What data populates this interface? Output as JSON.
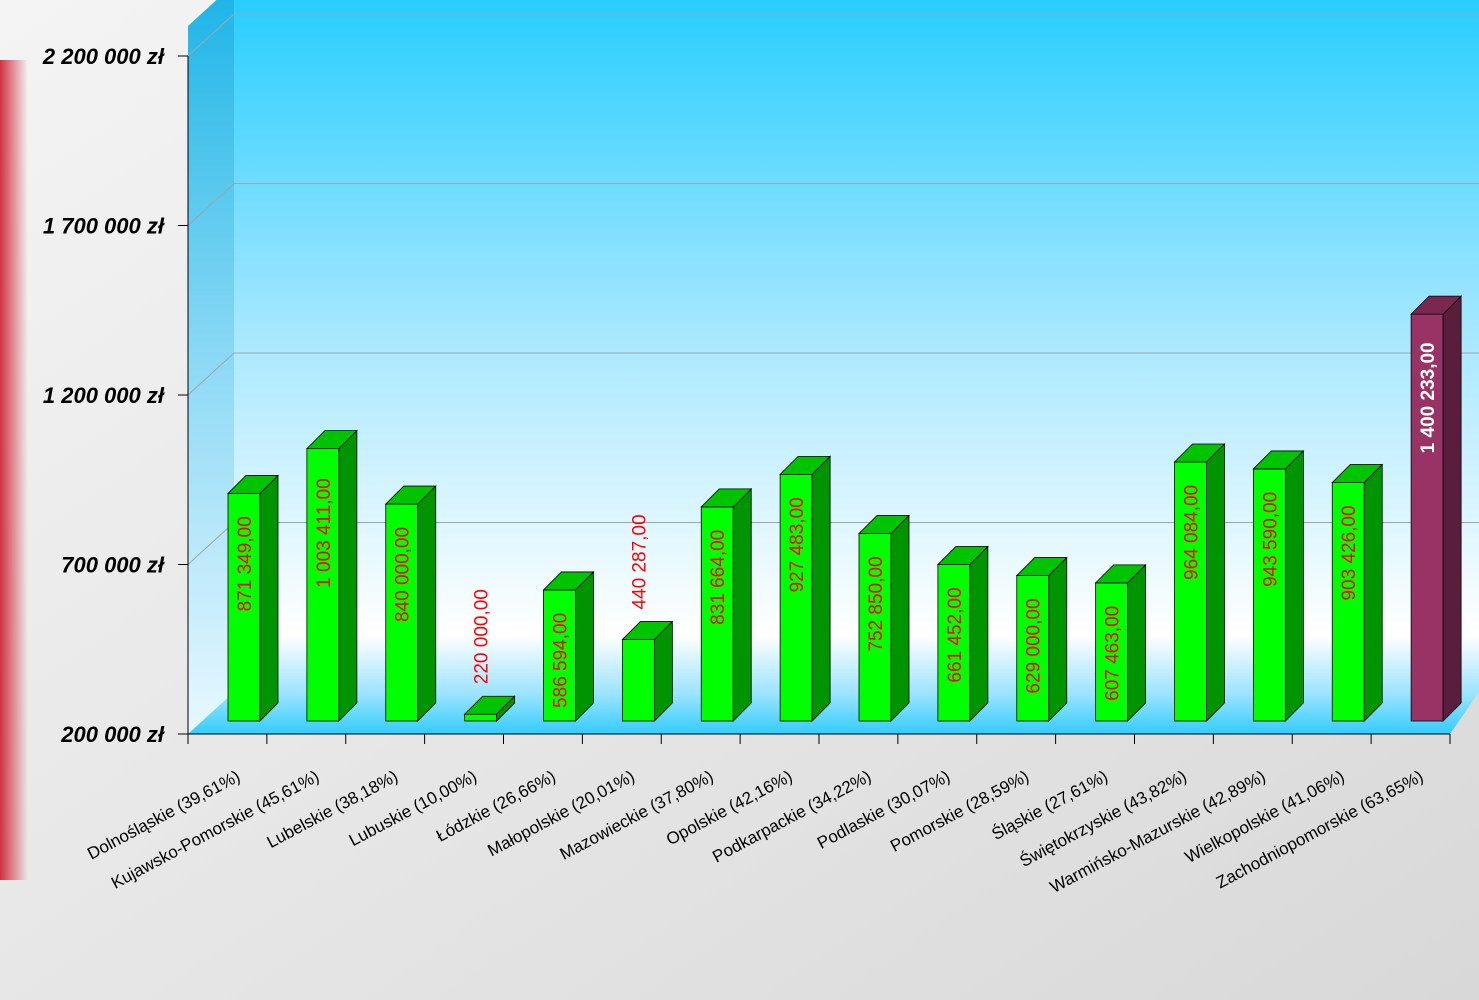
{
  "chart_data": {
    "type": "bar",
    "title": "",
    "xlabel": "",
    "ylabel": "",
    "ylim": [
      200000,
      2200000
    ],
    "yticks": [
      {
        "value": 200000,
        "label": "200 000 zł"
      },
      {
        "value": 700000,
        "label": "700 000 zł"
      },
      {
        "value": 1200000,
        "label": "1 200 000 zł"
      },
      {
        "value": 1700000,
        "label": "1 700 000 zł"
      },
      {
        "value": 2200000,
        "label": "2 200 000 zł"
      }
    ],
    "categories": [
      "Dolnośląskie (39,61%)",
      "Kujawsko-Pomorskie (45,61%)",
      "Lubelskie (38,18%)",
      "Lubuskie (10,00%)",
      "Łódzkie (26,66%)",
      "Małopolskie (20,01%)",
      "Mazowieckie (37,80%)",
      "Opolskie (42,16%)",
      "Podkarpackie (34,22%)",
      "Podlaskie (30,07%)",
      "Pomorskie (28,59%)",
      "Śląskie (27,61%)",
      "Świętokrzyskie (43,82%)",
      "Warmińsko-Mazurskie (42,89%)",
      "Wielkopolskie (41,06%)",
      "Zachodniopomorskie (63,65%)"
    ],
    "values": [
      871349,
      1003411,
      840000,
      220000,
      586594,
      440287,
      831664,
      927483,
      752850,
      661452,
      629000,
      607463,
      964084,
      943590,
      903426,
      1400233
    ],
    "data_labels": [
      "871 349,00",
      "1 003 411,00",
      "840 000,00",
      "220 000,00",
      "586 594,00",
      "440 287,00",
      "831 664,00",
      "927 483,00",
      "752 850,00",
      "661 452,00",
      "629 000,00",
      "607 463,00",
      "964 084,00",
      "943 590,00",
      "903 426,00",
      "1 400 233,00"
    ],
    "highlight_index": 15,
    "grid": true,
    "colors": {
      "bar": "#00ff00",
      "bar_side": "#009500",
      "bar_top": "#00c400",
      "highlight": "#993366",
      "highlight_side": "#5a1d3b",
      "highlight_top": "#7a2850",
      "label": "#ff0000",
      "highlight_label": "#ffffff",
      "wall_top": "#22ccff",
      "wall_bottom": "#ffffff",
      "floor": "#66ddff"
    }
  }
}
